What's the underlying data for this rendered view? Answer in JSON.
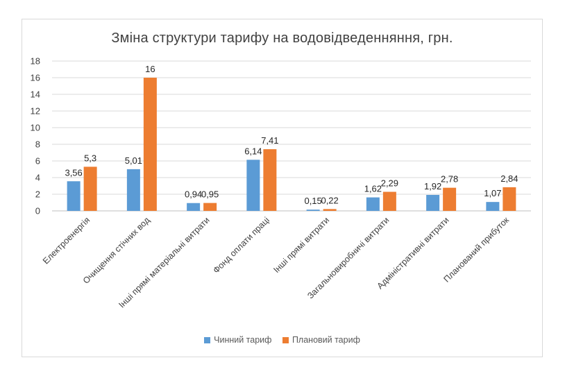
{
  "chart_data": {
    "type": "bar",
    "title": "Зміна структури тарифу на водовідведенняння, грн.",
    "xlabel": "",
    "ylabel": "",
    "ylim": [
      0,
      18
    ],
    "yticks": [
      "0",
      "2",
      "4",
      "6",
      "8",
      "10",
      "12",
      "14",
      "16",
      "18"
    ],
    "grid": true,
    "legend_position": "bottom",
    "categories": [
      "Електроенергія",
      "Очищення стічних вод",
      "Інші прямі матеріальні витрати",
      "Фонд оплати праці",
      "Інші прямі  витрати",
      "Загальновиробничі витрати",
      "Адміністративні витрати",
      "Планований прибуток"
    ],
    "series": [
      {
        "name": "Чинний тариф",
        "color": "#5B9BD5",
        "values": [
          3.56,
          5.01,
          0.94,
          6.14,
          0.15,
          1.62,
          1.92,
          1.07
        ],
        "labels": [
          "3,56",
          "5,01",
          "0,94",
          "6,14",
          "0,15",
          "1,62",
          "1,92",
          "1,07"
        ]
      },
      {
        "name": "Плановий тариф",
        "color": "#ED7D31",
        "values": [
          5.3,
          16,
          0.95,
          7.41,
          0.22,
          2.29,
          2.78,
          2.84
        ],
        "labels": [
          "5,3",
          "16",
          "0,95",
          "7,41",
          "0,22",
          "2,29",
          "2,78",
          "2,84"
        ]
      }
    ]
  }
}
